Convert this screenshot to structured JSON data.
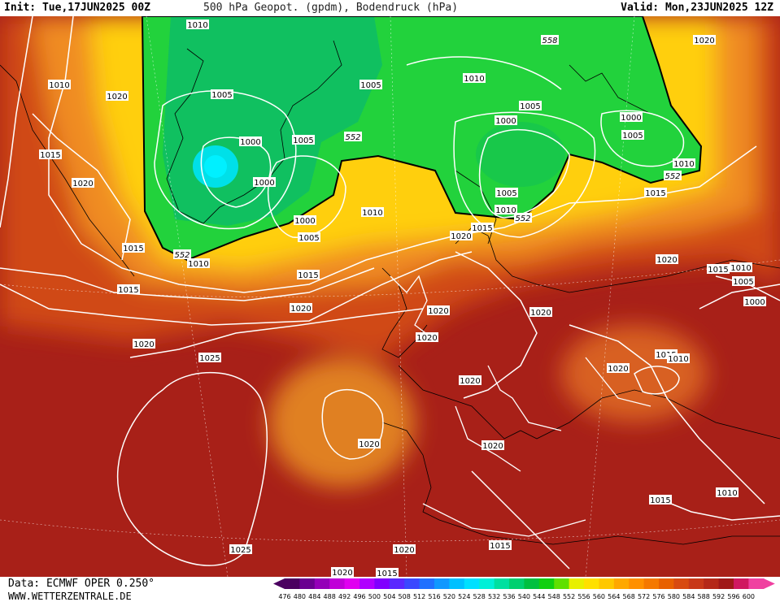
{
  "header": {
    "init": "Init: Tue,17JUN2025 00Z",
    "title": "500 hPa Geopot. (gpdm), Bodendruck (hPa)",
    "valid": "Valid: Mon,23JUN2025 12Z"
  },
  "footer": {
    "source": "Data: ECMWF OPER 0.250°",
    "website": "WWW.WETTERZENTRALE.DE"
  },
  "colorbar": {
    "ticks": [
      "476",
      "480",
      "484",
      "488",
      "492",
      "496",
      "500",
      "504",
      "508",
      "512",
      "516",
      "520",
      "524",
      "528",
      "532",
      "536",
      "540",
      "544",
      "548",
      "552",
      "556",
      "560",
      "564",
      "568",
      "572",
      "576",
      "580",
      "584",
      "588",
      "592",
      "596",
      "600"
    ],
    "colors": [
      "#4b0060",
      "#6a0090",
      "#9400b8",
      "#c000d8",
      "#e000f0",
      "#b000ff",
      "#8000ff",
      "#5a28ff",
      "#3a48ff",
      "#2070ff",
      "#1098ff",
      "#00c0ff",
      "#00e0ff",
      "#00f0d8",
      "#00e0a0",
      "#00d070",
      "#00c040",
      "#10d010",
      "#60e000",
      "#e8f000",
      "#ffe000",
      "#ffc800",
      "#ffa800",
      "#ff9000",
      "#f57800",
      "#e86000",
      "#d84a10",
      "#c83818",
      "#b52818",
      "#a01818",
      "#d01860",
      "#f040a0"
    ]
  },
  "isobar_labels": [
    "1010",
    "1010",
    "1020",
    "1015",
    "1020",
    "1015",
    "1010",
    "1005",
    "1000",
    "1000",
    "1005",
    "1000",
    "1005",
    "1000",
    "1005",
    "1010",
    "1005",
    "1005",
    "1000",
    "1005",
    "1010",
    "1015",
    "1020",
    "1015",
    "1010",
    "1020",
    "1010",
    "1015",
    "1020",
    "1015",
    "1020",
    "1025",
    "1020",
    "1025",
    "1020",
    "1020",
    "1020",
    "1020",
    "1020",
    "1020",
    "1015",
    "1015",
    "1010",
    "1015",
    "1010",
    "1005",
    "1000",
    "1020",
    "1015",
    "1010",
    "1025",
    "1020",
    "1015",
    "1015",
    "1020",
    "1015"
  ],
  "height_labels": [
    "552",
    "552",
    "552",
    "558",
    "552",
    "552"
  ]
}
